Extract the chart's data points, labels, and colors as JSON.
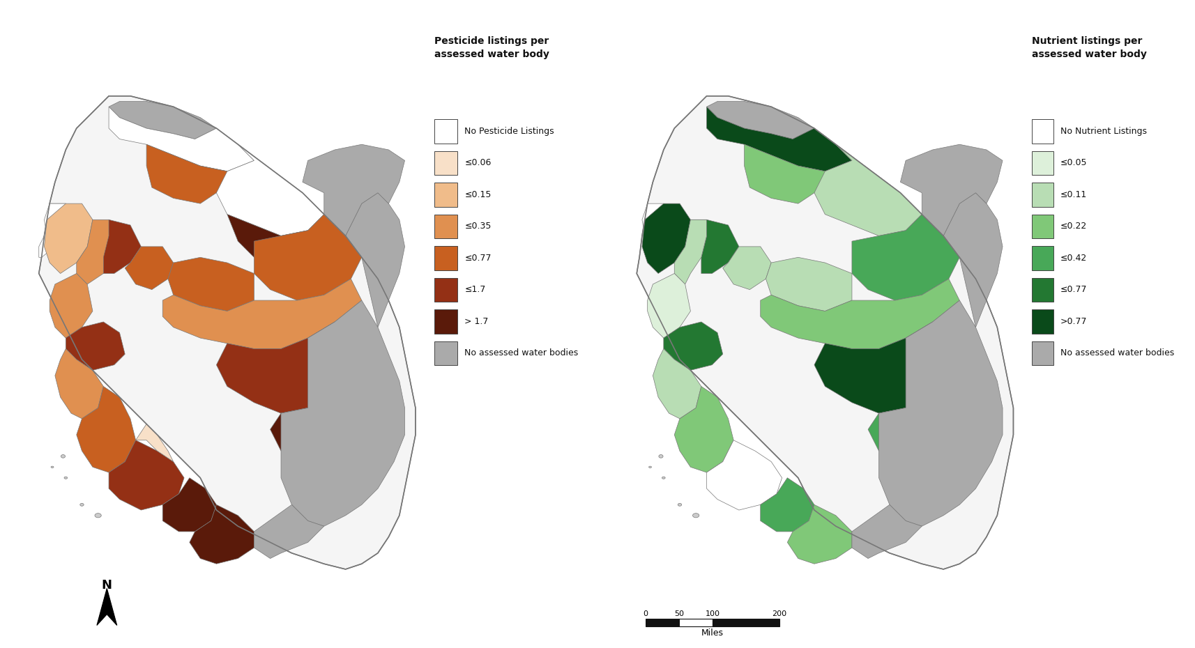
{
  "pesticide_title": "Pesticide listings per\nassessed water body",
  "nutrient_title": "Nutrient listings per\nassessed water body",
  "pesticide_legend_labels": [
    "No Pesticide Listings",
    "≤0.06",
    "≤0.15",
    "≤0.35",
    "≤0.77",
    "≤1.7",
    "> 1.7",
    "No assessed water bodies"
  ],
  "pesticide_legend_colors": [
    "#FFFFFF",
    "#F8E0C8",
    "#F0BC8A",
    "#E09050",
    "#C86020",
    "#943015",
    "#5A1A0A",
    "#AAAAAA"
  ],
  "nutrient_legend_labels": [
    "No Nutrient Listings",
    "≤0.05",
    "≤0.11",
    "≤0.22",
    "≤0.42",
    "≤0.77",
    ">0.77",
    "No assessed water bodies"
  ],
  "nutrient_legend_colors": [
    "#FFFFFF",
    "#DDF0DA",
    "#B8DDB4",
    "#80C878",
    "#48A858",
    "#237832",
    "#0A4A1A",
    "#AAAAAA"
  ],
  "background_color": "#FFFFFF",
  "border_color": "#777777",
  "map_bg": "#F0F0F0"
}
